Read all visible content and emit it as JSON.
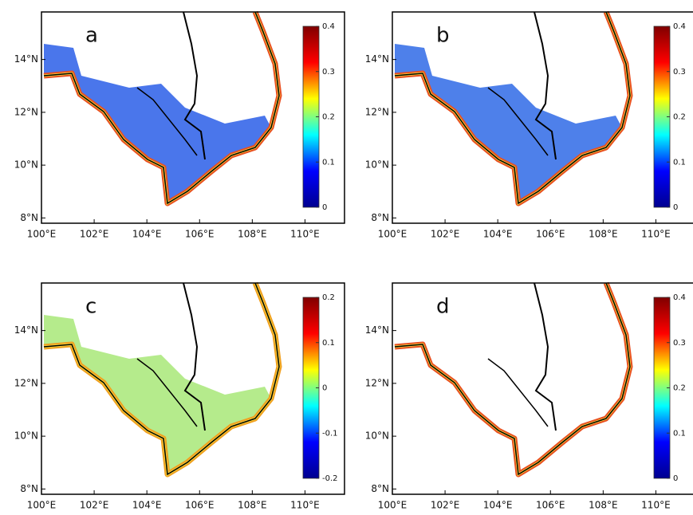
{
  "panels": [
    {
      "label": "a",
      "xlim": [
        100,
        111.5
      ],
      "ylim": [
        7.8,
        15.8
      ],
      "xticks": [
        {
          "value": 100,
          "label": "100°E"
        },
        {
          "value": 102,
          "label": "102°E"
        },
        {
          "value": 104,
          "label": "104°E"
        },
        {
          "value": 106,
          "label": "106°E"
        },
        {
          "value": 108,
          "label": "108°E"
        },
        {
          "value": 110,
          "label": "110°E"
        }
      ],
      "yticks": [
        {
          "value": 8,
          "label": "8°N"
        },
        {
          "value": 10,
          "label": "10°N"
        },
        {
          "value": 12,
          "label": "12°N"
        },
        {
          "value": 14,
          "label": "14°N"
        }
      ],
      "colorbar": {
        "colormap": "jet",
        "clim": [
          0,
          0.4
        ],
        "ticks": [
          0,
          0.1,
          0.2,
          0.3,
          0.4
        ]
      }
    },
    {
      "label": "b",
      "xlim": [
        100,
        111.5
      ],
      "ylim": [
        7.8,
        15.8
      ],
      "xticks": [
        {
          "value": 100,
          "label": "100°E"
        },
        {
          "value": 102,
          "label": "102°E"
        },
        {
          "value": 104,
          "label": "104°E"
        },
        {
          "value": 106,
          "label": "106°E"
        },
        {
          "value": 108,
          "label": "108°E"
        },
        {
          "value": 110,
          "label": "110°E"
        }
      ],
      "yticks": [
        {
          "value": 8,
          "label": "8°N"
        },
        {
          "value": 10,
          "label": "10°N"
        },
        {
          "value": 12,
          "label": "12°N"
        },
        {
          "value": 14,
          "label": "14°N"
        }
      ],
      "colorbar": {
        "colormap": "jet",
        "clim": [
          0,
          0.4
        ],
        "ticks": [
          0,
          0.1,
          0.2,
          0.3,
          0.4
        ]
      }
    },
    {
      "label": "c",
      "xlim": [
        100,
        111.5
      ],
      "ylim": [
        7.8,
        15.8
      ],
      "xticks": [
        {
          "value": 100,
          "label": "100°E"
        },
        {
          "value": 102,
          "label": "102°E"
        },
        {
          "value": 104,
          "label": "104°E"
        },
        {
          "value": 106,
          "label": "106°E"
        },
        {
          "value": 108,
          "label": "108°E"
        },
        {
          "value": 110,
          "label": "110°E"
        }
      ],
      "yticks": [
        {
          "value": 8,
          "label": "8°N"
        },
        {
          "value": 10,
          "label": "10°N"
        },
        {
          "value": 12,
          "label": "12°N"
        },
        {
          "value": 14,
          "label": "14°N"
        }
      ],
      "colorbar": {
        "colormap": "jet",
        "clim": [
          -0.2,
          0.2
        ],
        "ticks": [
          -0.2,
          -0.1,
          0,
          0.1,
          0.2
        ]
      }
    },
    {
      "label": "d",
      "xlim": [
        100,
        111.5
      ],
      "ylim": [
        7.8,
        15.8
      ],
      "xticks": [
        {
          "value": 100,
          "label": "100°E"
        },
        {
          "value": 102,
          "label": "102°E"
        },
        {
          "value": 104,
          "label": "104°E"
        },
        {
          "value": 106,
          "label": "106°E"
        },
        {
          "value": 108,
          "label": "108°E"
        },
        {
          "value": 110,
          "label": "110°E"
        }
      ],
      "yticks": [
        {
          "value": 8,
          "label": "8°N"
        },
        {
          "value": 10,
          "label": "10°N"
        },
        {
          "value": 12,
          "label": "12°N"
        },
        {
          "value": 14,
          "label": "14°N"
        }
      ],
      "colorbar": {
        "colormap": "jet",
        "clim": [
          0,
          0.4
        ],
        "ticks": [
          0,
          0.1,
          0.2,
          0.3,
          0.4
        ]
      }
    }
  ]
}
